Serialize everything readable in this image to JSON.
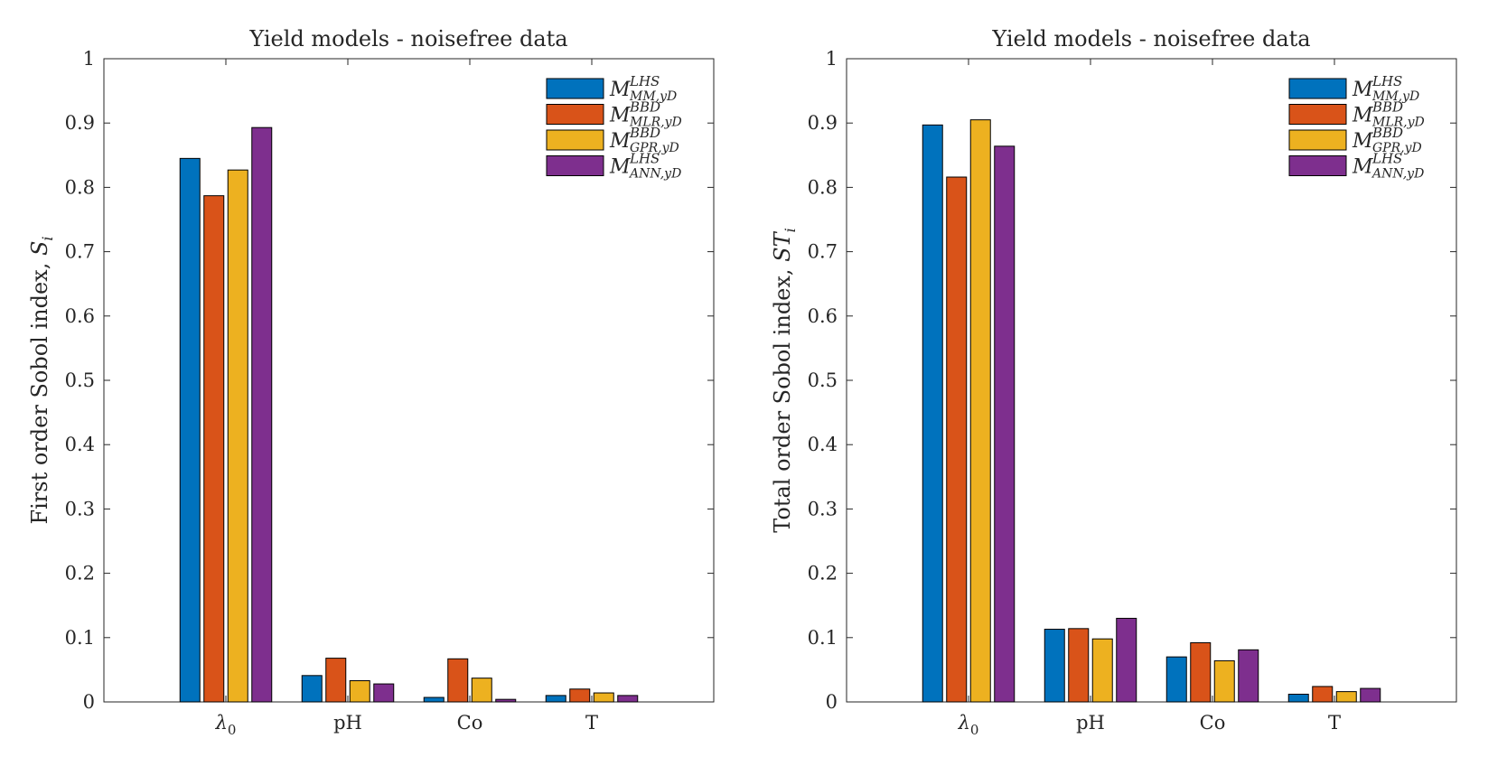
{
  "chart_data": [
    {
      "type": "bar",
      "title": "Yield models - noisefree data",
      "ylabel": "First order Sobol index, ",
      "ylabel_symbol": "S",
      "ylabel_sub": "i",
      "categories": [
        "λ0",
        "pH",
        "Co",
        "T"
      ],
      "category_display": [
        {
          "main": "λ",
          "sub": "0"
        },
        {
          "main": "pH",
          "sub": ""
        },
        {
          "main": "Co",
          "sub": ""
        },
        {
          "main": "T",
          "sub": ""
        }
      ],
      "ylim": [
        0,
        1
      ],
      "yticks": [
        "0",
        "0.1",
        "0.2",
        "0.3",
        "0.4",
        "0.5",
        "0.6",
        "0.7",
        "0.8",
        "0.9",
        "1"
      ],
      "grid": false,
      "legend_position": "top-right",
      "series": [
        {
          "name": "M^{LHS}_{MM,yD}",
          "color": "#0072BD",
          "values": [
            0.845,
            0.041,
            0.007,
            0.01
          ]
        },
        {
          "name": "M^{BBD}_{MLR,yD}",
          "color": "#D95319",
          "values": [
            0.787,
            0.068,
            0.067,
            0.02
          ]
        },
        {
          "name": "M^{BBD}_{GPR,yD}",
          "color": "#EDB120",
          "values": [
            0.827,
            0.033,
            0.037,
            0.014
          ]
        },
        {
          "name": "M^{LHS}_{ANN,yD}",
          "color": "#7E2F8E",
          "values": [
            0.893,
            0.028,
            0.004,
            0.01
          ]
        }
      ]
    },
    {
      "type": "bar",
      "title": "Yield models - noisefree data",
      "ylabel": "Total order Sobol index, ",
      "ylabel_symbol": "ST",
      "ylabel_sub": "i",
      "categories": [
        "λ0",
        "pH",
        "Co",
        "T"
      ],
      "category_display": [
        {
          "main": "λ",
          "sub": "0"
        },
        {
          "main": "pH",
          "sub": ""
        },
        {
          "main": "Co",
          "sub": ""
        },
        {
          "main": "T",
          "sub": ""
        }
      ],
      "ylim": [
        0,
        1
      ],
      "yticks": [
        "0",
        "0.1",
        "0.2",
        "0.3",
        "0.4",
        "0.5",
        "0.6",
        "0.7",
        "0.8",
        "0.9",
        "1"
      ],
      "grid": false,
      "legend_position": "top-right",
      "series": [
        {
          "name": "M^{LHS}_{MM,yD}",
          "color": "#0072BD",
          "values": [
            0.897,
            0.113,
            0.07,
            0.012
          ]
        },
        {
          "name": "M^{BBD}_{MLR,yD}",
          "color": "#D95319",
          "values": [
            0.816,
            0.114,
            0.092,
            0.024
          ]
        },
        {
          "name": "M^{BBD}_{GPR,yD}",
          "color": "#EDB120",
          "values": [
            0.905,
            0.098,
            0.064,
            0.016
          ]
        },
        {
          "name": "M^{LHS}_{ANN,yD}",
          "color": "#7E2F8E",
          "values": [
            0.864,
            0.13,
            0.081,
            0.021
          ]
        }
      ]
    }
  ],
  "legend_entries": [
    {
      "symbol": "M",
      "sup": "LHS",
      "sub": "MM,yD"
    },
    {
      "symbol": "M",
      "sup": "BBD",
      "sub": "MLR,yD"
    },
    {
      "symbol": "M",
      "sup": "BBD",
      "sub": "GPR,yD"
    },
    {
      "symbol": "M",
      "sup": "LHS",
      "sub": "ANN,yD"
    }
  ]
}
